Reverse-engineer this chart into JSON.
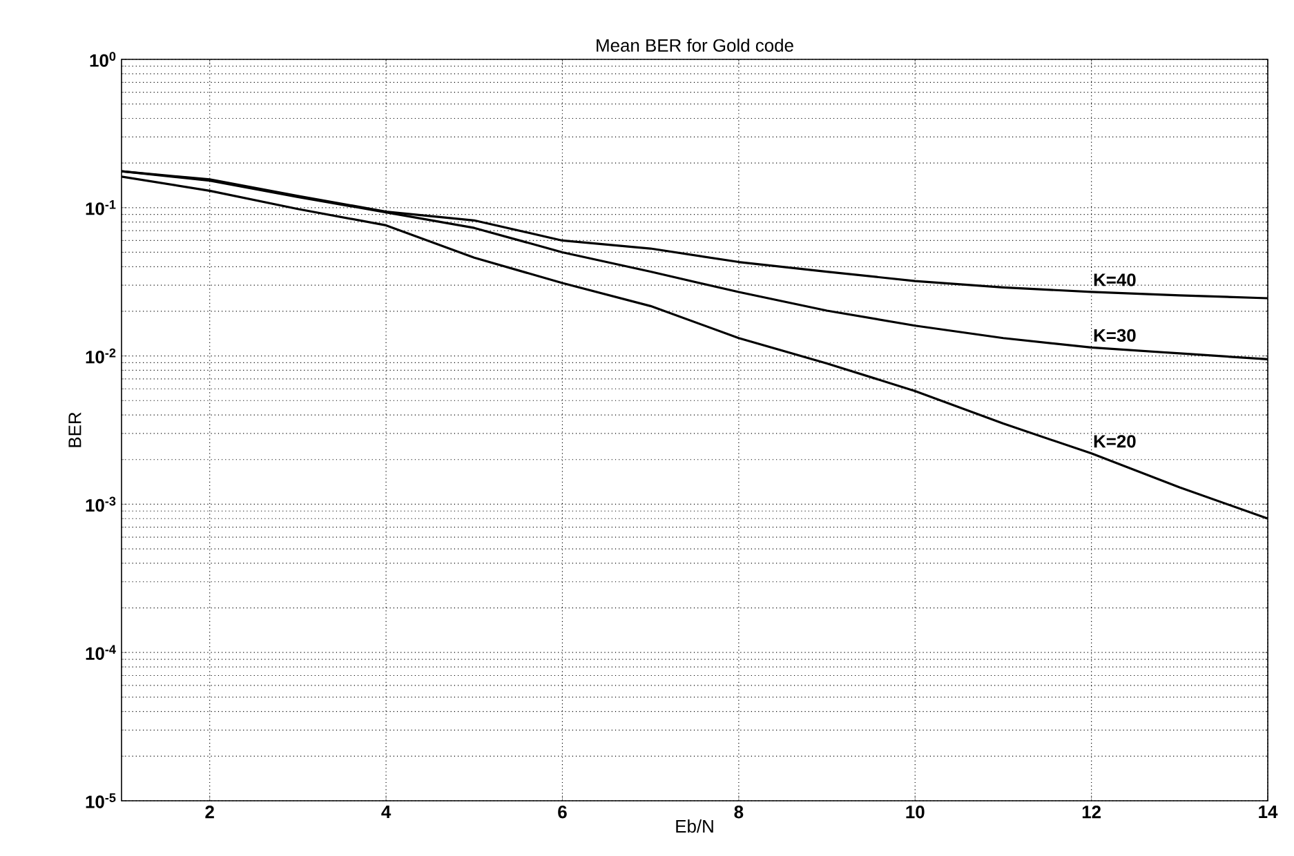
{
  "chart_data": {
    "type": "line",
    "title": "Mean BER for Gold code",
    "xlabel": "Eb/N",
    "ylabel": "BER",
    "x": [
      1,
      2,
      3,
      4,
      5,
      6,
      7,
      8,
      9,
      10,
      11,
      12,
      13,
      14
    ],
    "series": [
      {
        "name": "K=40",
        "color": "#000000",
        "values": [
          0.176,
          0.155,
          0.12,
          0.094,
          0.082,
          0.06,
          0.053,
          0.043,
          0.037,
          0.032,
          0.029,
          0.027,
          0.0256,
          0.0245
        ]
      },
      {
        "name": "K=30",
        "color": "#000000",
        "values": [
          0.176,
          0.152,
          0.118,
          0.093,
          0.073,
          0.05,
          0.037,
          0.027,
          0.0202,
          0.016,
          0.0132,
          0.0114,
          0.0104,
          0.0095
        ]
      },
      {
        "name": "K=20",
        "color": "#000000",
        "values": [
          0.162,
          0.13,
          0.098,
          0.076,
          0.046,
          0.031,
          0.0217,
          0.0132,
          0.0089,
          0.0058,
          0.0035,
          0.0022,
          0.0013,
          0.0008
        ]
      }
    ],
    "log": "y",
    "grid": true,
    "marker": "none",
    "line_style": "solid",
    "xlim": [
      1,
      14
    ],
    "ylim": [
      1e-05,
      1
    ],
    "xticks": [
      2,
      4,
      6,
      8,
      10,
      12,
      14
    ],
    "yticks": [
      {
        "value": 1e-05,
        "label": "10$^{-5}$"
      },
      {
        "value": 0.0001,
        "label": "10$^{-4}$"
      },
      {
        "value": 0.001,
        "label": "10$^{-3}$"
      },
      {
        "value": 0.01,
        "label": "10$^{-2}$"
      },
      {
        "value": 0.1,
        "label": "10$^{-1}$"
      },
      {
        "value": 1,
        "label": "10$^{0}$"
      }
    ]
  }
}
